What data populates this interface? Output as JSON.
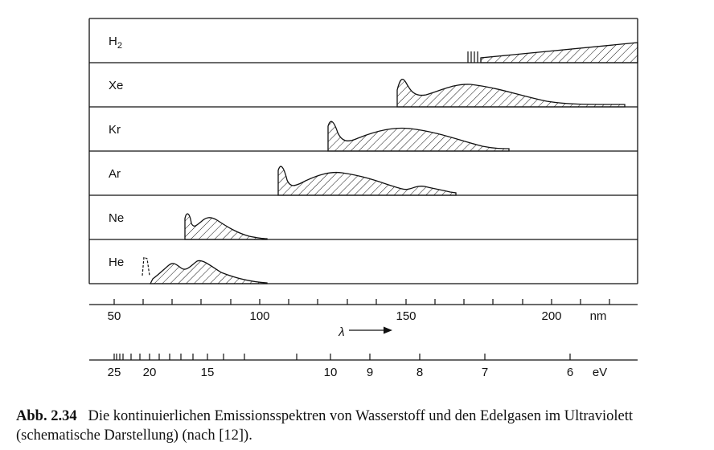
{
  "panels": [
    "H2",
    "Xe",
    "Kr",
    "Ar",
    "Ne",
    "He"
  ],
  "wavelength_axis": {
    "tick_labels": [
      "50",
      "100",
      "150",
      "200"
    ],
    "unit": "nm",
    "variable": "λ"
  },
  "energy_axis": {
    "tick_labels": [
      "25",
      "20",
      "15",
      "10",
      "9",
      "8",
      "7",
      "6"
    ],
    "unit": "eV"
  },
  "caption": {
    "label": "Abb. 2.34",
    "text": "Die kontinuierlichen Emissionsspektren von Wasserstoff und den Edelgasen im Ultraviolett (schematische Darstellung) (nach [12])."
  }
}
